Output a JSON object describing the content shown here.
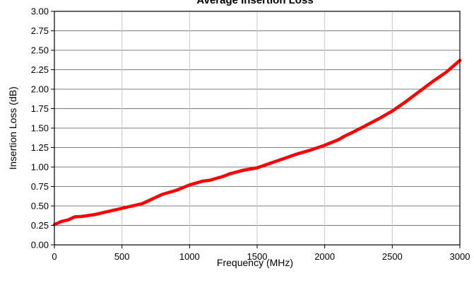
{
  "chart_data": {
    "type": "line",
    "title": "Average Insertion Loss",
    "xlabel": "Frequency (MHz)",
    "ylabel": "Insertion Loss (dB)",
    "xlim": [
      0,
      3000
    ],
    "ylim": [
      0,
      3
    ],
    "x_ticks": [
      "0",
      "500",
      "1000",
      "1500",
      "2000",
      "2500",
      "3000"
    ],
    "y_ticks": [
      "0.00",
      "0.25",
      "0.50",
      "0.75",
      "1.00",
      "1.25",
      "1.50",
      "1.75",
      "2.00",
      "2.25",
      "2.50",
      "2.75",
      "3.00"
    ],
    "grid": true,
    "series": [
      {
        "color": "#ff0000",
        "x": [
          0,
          50,
          100,
          150,
          200,
          300,
          400,
          500,
          600,
          650,
          700,
          800,
          900,
          1000,
          1100,
          1150,
          1200,
          1250,
          1300,
          1400,
          1500,
          1600,
          1700,
          1800,
          1900,
          2000,
          2100,
          2150,
          2200,
          2300,
          2400,
          2500,
          2600,
          2700,
          2800,
          2900,
          3000
        ],
        "y": [
          0.26,
          0.3,
          0.32,
          0.36,
          0.365,
          0.39,
          0.43,
          0.47,
          0.51,
          0.53,
          0.57,
          0.65,
          0.7,
          0.77,
          0.82,
          0.83,
          0.855,
          0.88,
          0.915,
          0.96,
          0.99,
          1.05,
          1.11,
          1.17,
          1.22,
          1.28,
          1.35,
          1.4,
          1.44,
          1.53,
          1.62,
          1.72,
          1.84,
          1.97,
          2.1,
          2.22,
          2.37
        ]
      }
    ]
  }
}
